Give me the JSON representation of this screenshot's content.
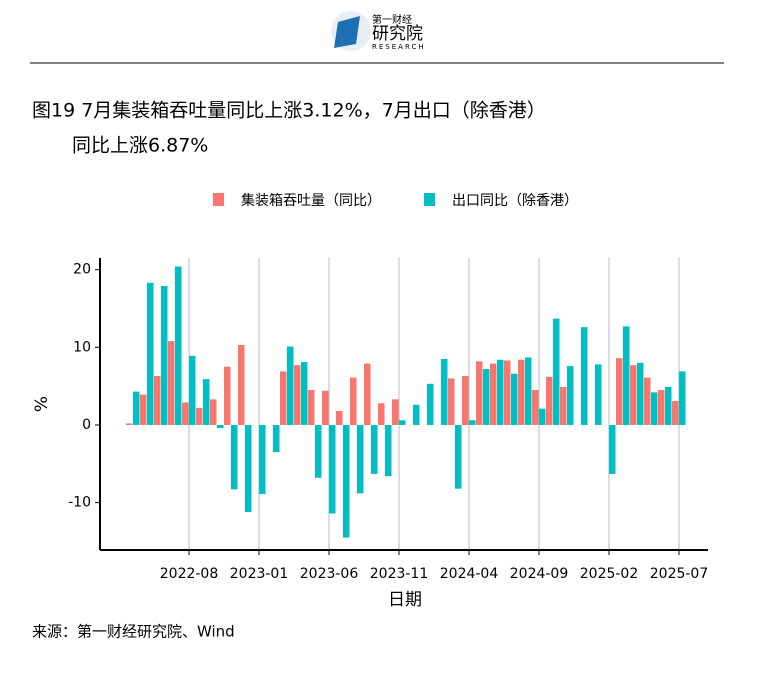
{
  "logo": {
    "name": "第一财经",
    "title": "研究院",
    "subtitle": "RESEARCH"
  },
  "chart_data": {
    "type": "bar",
    "title": [
      "图19 7月集装箱吞吐量同比上涨3.12%，7月出口（除香港）",
      "同比上涨6.87%"
    ],
    "xlabel": "日期",
    "ylabel": "%",
    "categories": [
      null,
      null,
      null,
      null,
      "2022-08",
      null,
      null,
      null,
      null,
      "2023-01",
      null,
      null,
      null,
      null,
      "2023-06",
      null,
      null,
      null,
      null,
      "2023-11",
      null,
      null,
      null,
      null,
      "2024-04",
      null,
      null,
      null,
      null,
      "2024-09",
      null,
      null,
      null,
      null,
      "2025-02",
      null,
      null,
      null,
      null,
      "2025-07"
    ],
    "series": [
      {
        "name": "集装箱吞吐量（同比）",
        "color": "#f8766d",
        "values": [
          0.2,
          3.9,
          6.3,
          10.8,
          2.9,
          2.2,
          3.3,
          7.5,
          10.3,
          null,
          null,
          6.9,
          7.7,
          4.5,
          4.4,
          1.8,
          6.1,
          7.9,
          2.8,
          3.3,
          null,
          null,
          null,
          6.0,
          6.3,
          8.2,
          7.9,
          8.3,
          8.4,
          4.5,
          6.2,
          4.9,
          null,
          null,
          null,
          8.6,
          7.7,
          6.1,
          4.5,
          3.1
        ]
      },
      {
        "name": "出口同比（除香港）",
        "color": "#00bfc4",
        "values": [
          4.3,
          18.3,
          17.9,
          20.4,
          8.9,
          5.9,
          -0.4,
          -8.3,
          -11.2,
          -8.9,
          -3.5,
          10.1,
          8.1,
          -6.8,
          -11.4,
          -14.5,
          -8.8,
          -6.3,
          -6.6,
          0.6,
          2.6,
          5.3,
          8.5,
          -8.2,
          0.6,
          7.2,
          8.4,
          6.6,
          8.7,
          2.1,
          13.7,
          7.6,
          12.6,
          7.8,
          -6.3,
          12.7,
          8.0,
          4.2,
          4.9,
          6.9
        ]
      }
    ],
    "ylim": [
      -16.1,
      21.5
    ],
    "yticks": [
      -10,
      0,
      10,
      20
    ],
    "grid": "x",
    "legend": "top"
  },
  "source": "来源：第一财经研究院、Wind"
}
